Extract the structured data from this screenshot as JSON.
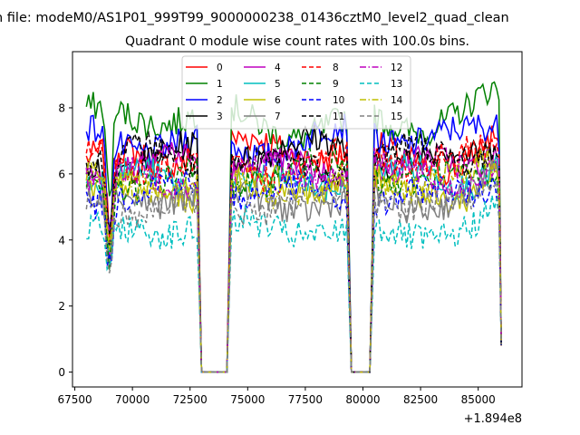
{
  "chart_data": {
    "type": "line",
    "suptitle": "n file: modeM0/AS1P01_999T99_9000000238_01436cztM0_level2_quad_clean",
    "title": "Quadrant 0 module wise count rates with 100.0s bins.",
    "xlabel": "",
    "ylabel": "",
    "x_offset_label": "+1.894e8",
    "xlim": [
      67400,
      86900
    ],
    "ylim": [
      -0.45,
      9.7
    ],
    "xticks": [
      67500,
      70000,
      72500,
      75000,
      77500,
      80000,
      82500,
      85000
    ],
    "yticks": [
      0,
      2,
      4,
      6,
      8
    ],
    "bin_seconds": 100,
    "x_range": [
      68000,
      86000
    ],
    "gaps": [
      [
        73000,
        74100
      ],
      [
        79500,
        80300
      ]
    ],
    "legend_position": "upper center",
    "legend_columns": 4,
    "series": [
      {
        "name": "0",
        "color": "#ff0000",
        "style": "solid",
        "level": 6.6
      },
      {
        "name": "1",
        "color": "#008000",
        "style": "solid",
        "level": 7.6
      },
      {
        "name": "2",
        "color": "#0000ff",
        "style": "solid",
        "level": 7.0
      },
      {
        "name": "3",
        "color": "#000000",
        "style": "solid",
        "level": 6.6
      },
      {
        "name": "4",
        "color": "#bf00bf",
        "style": "solid",
        "level": 6.2
      },
      {
        "name": "5",
        "color": "#00bfbf",
        "style": "solid",
        "level": 5.8
      },
      {
        "name": "6",
        "color": "#bfbf00",
        "style": "solid",
        "level": 5.6
      },
      {
        "name": "7",
        "color": "#808080",
        "style": "solid",
        "level": 5.2
      },
      {
        "name": "8",
        "color": "#ff0000",
        "style": "dashed",
        "level": 6.3
      },
      {
        "name": "9",
        "color": "#008000",
        "style": "dashed",
        "level": 5.9
      },
      {
        "name": "10",
        "color": "#0000ff",
        "style": "dashed",
        "level": 5.4
      },
      {
        "name": "11",
        "color": "#000000",
        "style": "dashed",
        "level": 6.4
      },
      {
        "name": "12",
        "color": "#bf00bf",
        "style": "dashdot",
        "level": 6.0
      },
      {
        "name": "13",
        "color": "#00bfbf",
        "style": "dashed",
        "level": 4.3
      },
      {
        "name": "14",
        "color": "#bfbf00",
        "style": "dashdot",
        "level": 5.7
      },
      {
        "name": "15",
        "color": "#808080",
        "style": "dashed",
        "level": 5.1
      }
    ]
  }
}
